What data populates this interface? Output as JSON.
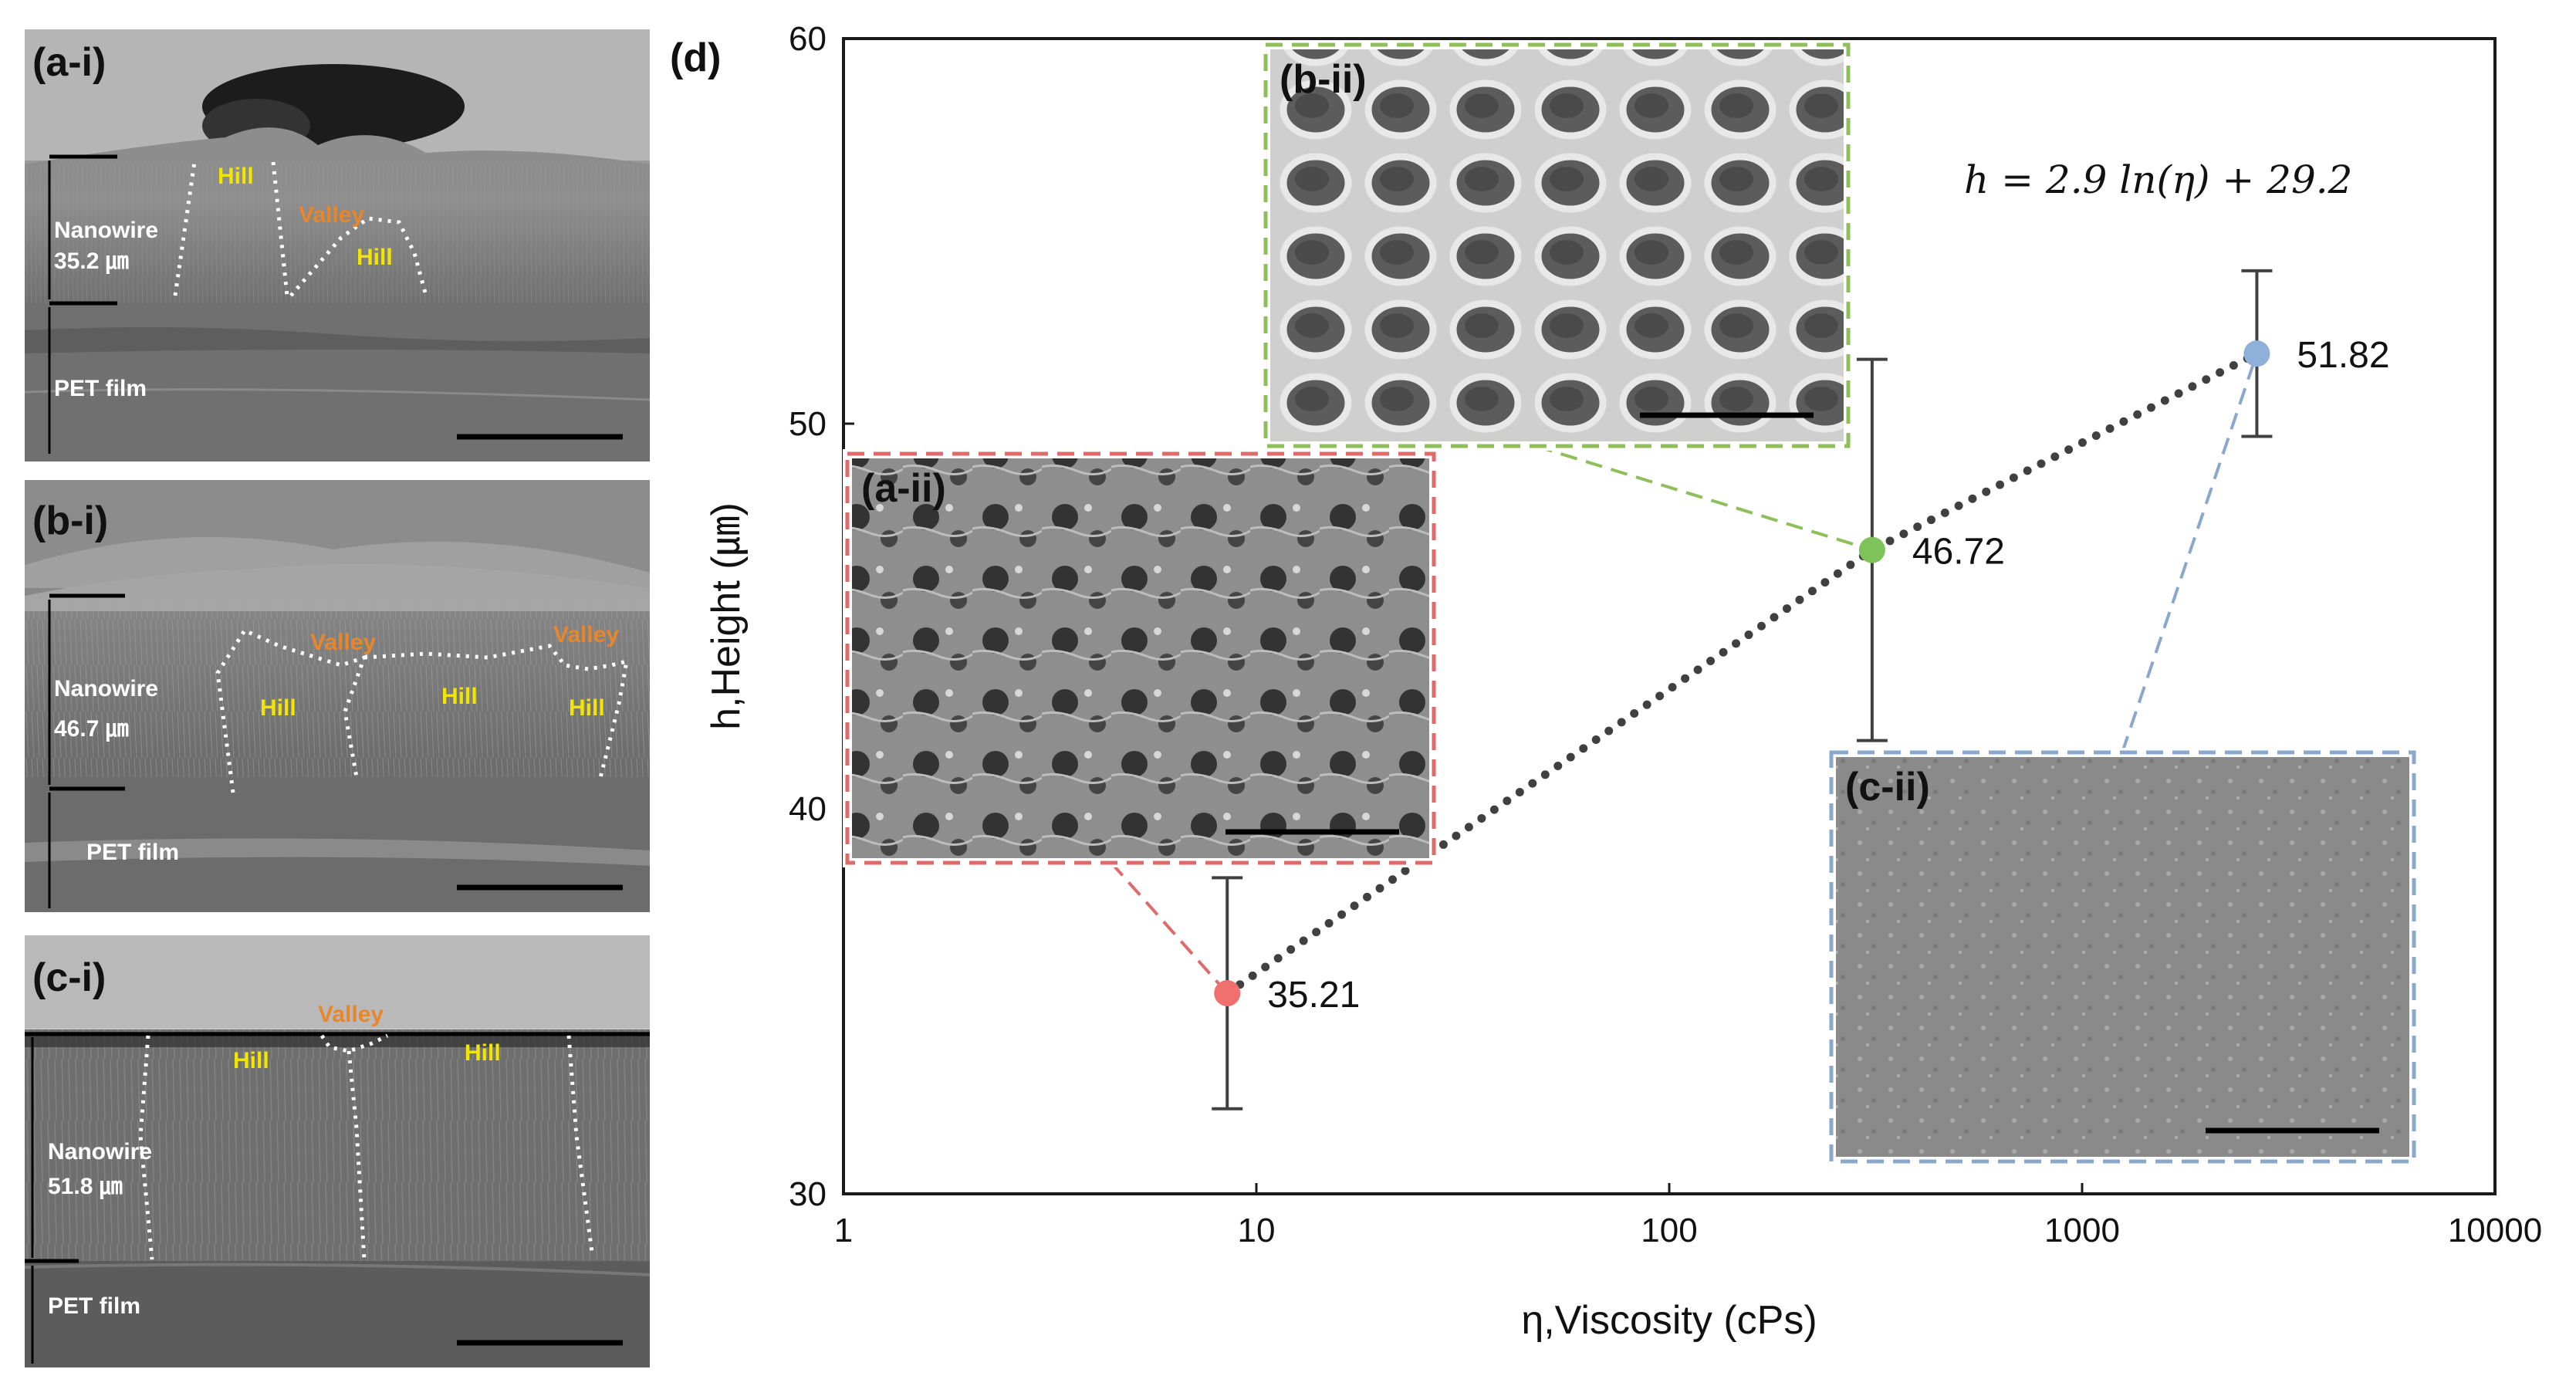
{
  "panels": {
    "a_i": {
      "label": "(a-i)",
      "nanowire": "Nanowire",
      "thickness": "35.2 ㎛",
      "substrate": "PET film",
      "hill_labels": [
        "Hill",
        "Hill"
      ],
      "valley_labels": [
        "Valley"
      ]
    },
    "b_i": {
      "label": "(b-i)",
      "nanowire": "Nanowire",
      "thickness": "46.7 ㎛",
      "substrate": "PET film",
      "hill_labels": [
        "Hill",
        "Hill",
        "Hill"
      ],
      "valley_labels": [
        "Valley",
        "Valley"
      ]
    },
    "c_i": {
      "label": "(c-i)",
      "nanowire": "Nanowire",
      "thickness": "51.8 ㎛",
      "substrate": "PET film",
      "hill_labels": [
        "Hill",
        "Hill"
      ],
      "valley_labels": [
        "Valley"
      ]
    },
    "a_ii": {
      "label": "(a-ii)"
    },
    "b_ii": {
      "label": "(b-ii)"
    },
    "c_ii": {
      "label": "(c-ii)"
    }
  },
  "chart_data": {
    "type": "scatter",
    "panel_label": "(d)",
    "xlabel": "η,Viscosity (cPs)",
    "ylabel": "h,Height (㎛)",
    "x_scale": "log",
    "xlim": [
      1,
      10000
    ],
    "ylim": [
      30,
      60
    ],
    "x_ticks": [
      1,
      10,
      100,
      1000,
      10000
    ],
    "y_ticks": [
      30,
      40,
      50,
      60
    ],
    "grid": false,
    "equation": "h = 2.9 ln(η) + 29.2",
    "fit": {
      "type": "log",
      "a": 2.9,
      "b": 29.2,
      "style": "dotted",
      "color": "#404040"
    },
    "points": [
      {
        "x": 8.5,
        "y": 35.21,
        "label": "35.21",
        "error": 3.0,
        "color": "#f07070",
        "inset": "a_ii"
      },
      {
        "x": 310,
        "y": 46.72,
        "label": "46.72",
        "error": 4.95,
        "color": "#7ec45a",
        "inset": "b_ii"
      },
      {
        "x": 2650,
        "y": 51.82,
        "label": "51.82",
        "error": 2.15,
        "color": "#8fb0d8",
        "inset": "c_ii"
      }
    ],
    "inset_colors": {
      "a_ii": "#e06a6a",
      "b_ii": "#8fbf5a",
      "c_ii": "#8aa8cc"
    }
  }
}
